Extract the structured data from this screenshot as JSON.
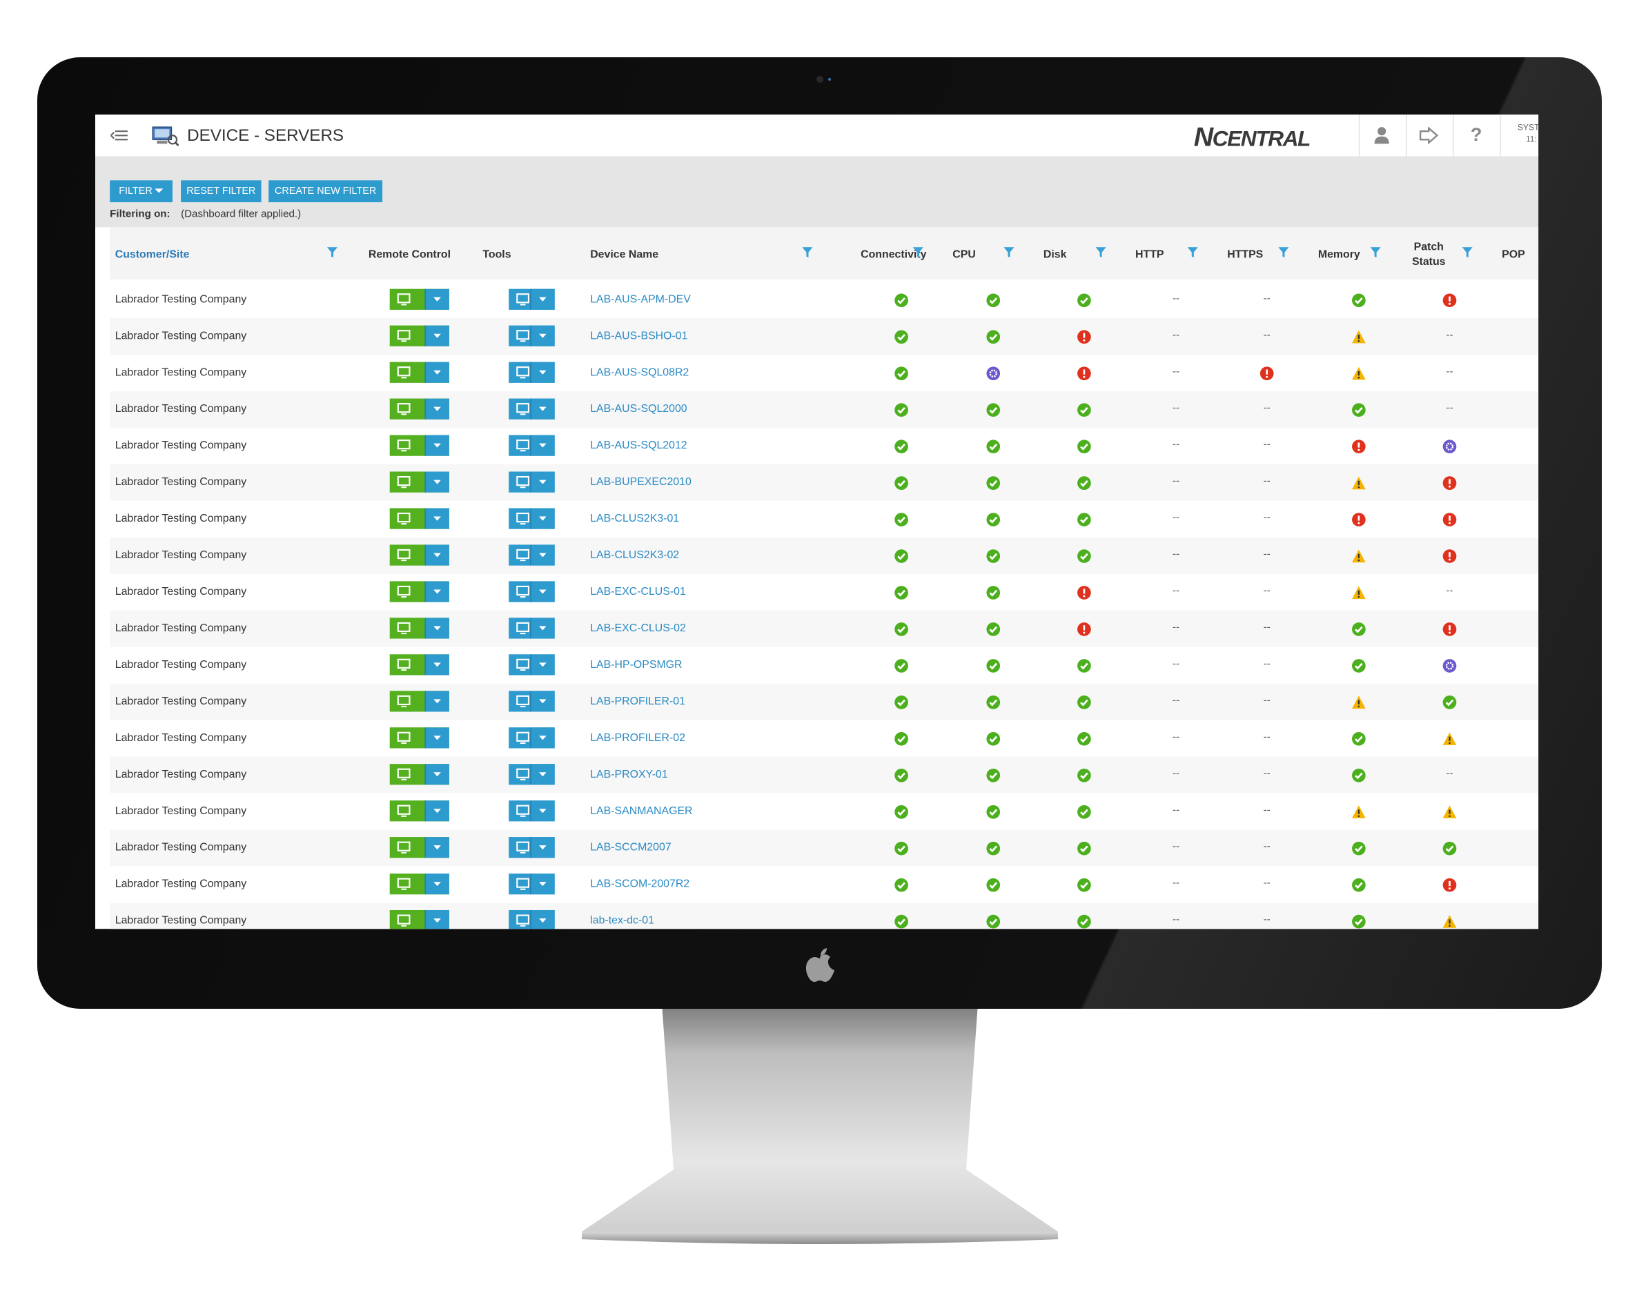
{
  "header": {
    "title": "DEVICE - SERVERS",
    "logo_n": "N",
    "logo_rest": "CENTRAL",
    "help": "?",
    "system": "SYST",
    "time": "11:"
  },
  "toolbar": {
    "buttons": [
      "FILTER",
      "RESET FILTER",
      "CREATE NEW FILTER"
    ],
    "filtering_label": "Filtering on:",
    "filtering_value": "(Dashboard filter applied.)"
  },
  "table": {
    "columns": [
      "Customer/Site",
      "Remote Control",
      "Tools",
      "Device Name",
      "Connectivity",
      "CPU",
      "Disk",
      "HTTP",
      "HTTPS",
      "Memory",
      "Patch Status",
      "POP"
    ],
    "rows": [
      {
        "customer": "Labrador Testing Company",
        "device": "LAB-AUS-APM-DEV",
        "status": [
          "ok",
          "ok",
          "ok",
          "--",
          "--",
          "ok",
          "error"
        ]
      },
      {
        "customer": "Labrador Testing Company",
        "device": "LAB-AUS-BSHO-01",
        "status": [
          "ok",
          "ok",
          "error",
          "--",
          "--",
          "warning",
          "--"
        ]
      },
      {
        "customer": "Labrador Testing Company",
        "device": "LAB-AUS-SQL08R2",
        "status": [
          "ok",
          "info",
          "error",
          "--",
          "error",
          "warning",
          "--"
        ]
      },
      {
        "customer": "Labrador Testing Company",
        "device": "LAB-AUS-SQL2000",
        "status": [
          "ok",
          "ok",
          "ok",
          "--",
          "--",
          "ok",
          "--"
        ]
      },
      {
        "customer": "Labrador Testing Company",
        "device": "LAB-AUS-SQL2012",
        "status": [
          "ok",
          "ok",
          "ok",
          "--",
          "--",
          "error",
          "info"
        ]
      },
      {
        "customer": "Labrador Testing Company",
        "device": "LAB-BUPEXEC2010",
        "status": [
          "ok",
          "ok",
          "ok",
          "--",
          "--",
          "warning",
          "error"
        ]
      },
      {
        "customer": "Labrador Testing Company",
        "device": "LAB-CLUS2K3-01",
        "status": [
          "ok",
          "ok",
          "ok",
          "--",
          "--",
          "error",
          "error"
        ]
      },
      {
        "customer": "Labrador Testing Company",
        "device": "LAB-CLUS2K3-02",
        "status": [
          "ok",
          "ok",
          "ok",
          "--",
          "--",
          "warning",
          "error"
        ]
      },
      {
        "customer": "Labrador Testing Company",
        "device": "LAB-EXC-CLUS-01",
        "status": [
          "ok",
          "ok",
          "error",
          "--",
          "--",
          "warning",
          "--"
        ]
      },
      {
        "customer": "Labrador Testing Company",
        "device": "LAB-EXC-CLUS-02",
        "status": [
          "ok",
          "ok",
          "error",
          "--",
          "--",
          "ok",
          "error"
        ]
      },
      {
        "customer": "Labrador Testing Company",
        "device": "LAB-HP-OPSMGR",
        "status": [
          "ok",
          "ok",
          "ok",
          "--",
          "--",
          "ok",
          "info"
        ]
      },
      {
        "customer": "Labrador Testing Company",
        "device": "LAB-PROFILER-01",
        "status": [
          "ok",
          "ok",
          "ok",
          "--",
          "--",
          "warning",
          "ok"
        ]
      },
      {
        "customer": "Labrador Testing Company",
        "device": "LAB-PROFILER-02",
        "status": [
          "ok",
          "ok",
          "ok",
          "--",
          "--",
          "ok",
          "warning"
        ]
      },
      {
        "customer": "Labrador Testing Company",
        "device": "LAB-PROXY-01",
        "status": [
          "ok",
          "ok",
          "ok",
          "--",
          "--",
          "ok",
          "--"
        ]
      },
      {
        "customer": "Labrador Testing Company",
        "device": "LAB-SANMANAGER",
        "status": [
          "ok",
          "ok",
          "ok",
          "--",
          "--",
          "warning",
          "warning"
        ]
      },
      {
        "customer": "Labrador Testing Company",
        "device": "LAB-SCCM2007",
        "status": [
          "ok",
          "ok",
          "ok",
          "--",
          "--",
          "ok",
          "ok"
        ]
      },
      {
        "customer": "Labrador Testing Company",
        "device": "LAB-SCOM-2007R2",
        "status": [
          "ok",
          "ok",
          "ok",
          "--",
          "--",
          "ok",
          "error"
        ]
      },
      {
        "customer": "Labrador Testing Company",
        "device": "lab-tex-dc-01",
        "status": [
          "ok",
          "ok",
          "ok",
          "--",
          "--",
          "ok",
          "warning"
        ]
      }
    ]
  }
}
